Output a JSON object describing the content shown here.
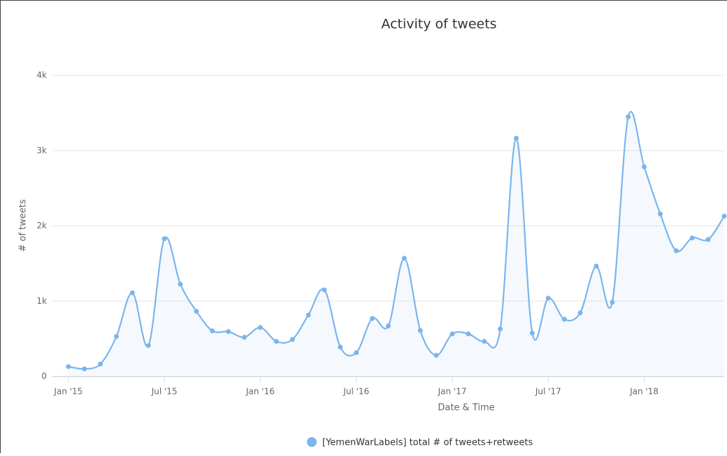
{
  "chart_data": {
    "type": "line",
    "title": "Activity of tweets",
    "x_label": "Date & Time",
    "y_label": "# of tweets",
    "x": [
      "2015-01",
      "2015-02",
      "2015-03",
      "2015-04",
      "2015-05",
      "2015-06",
      "2015-07",
      "2015-08",
      "2015-09",
      "2015-10",
      "2015-11",
      "2015-12",
      "2016-01",
      "2016-02",
      "2016-03",
      "2016-04",
      "2016-05",
      "2016-06",
      "2016-07",
      "2016-08",
      "2016-09",
      "2016-10",
      "2016-11",
      "2016-12",
      "2017-01",
      "2017-02",
      "2017-03",
      "2017-04",
      "2017-05",
      "2017-06",
      "2017-07",
      "2017-08",
      "2017-09",
      "2017-10",
      "2017-11",
      "2017-12",
      "2018-01",
      "2018-02",
      "2018-03",
      "2018-04",
      "2018-05",
      "2018-06"
    ],
    "series": [
      {
        "name": "[YemenWarLabels] total # of tweets+retweets",
        "color": "#7cb5ec",
        "values": [
          130,
          100,
          165,
          530,
          1110,
          410,
          1830,
          1225,
          865,
          605,
          595,
          520,
          650,
          465,
          490,
          815,
          1150,
          390,
          315,
          770,
          670,
          1570,
          610,
          280,
          565,
          565,
          465,
          630,
          3165,
          575,
          1040,
          760,
          845,
          1465,
          985,
          3450,
          2785,
          2160,
          1670,
          1840,
          1820,
          2130
        ]
      }
    ],
    "xlim": [
      "2014-12",
      "2018-06"
    ],
    "xticks": [
      {
        "value": "2015-01",
        "label": "Jan '15"
      },
      {
        "value": "2015-07",
        "label": "Jul '15"
      },
      {
        "value": "2016-01",
        "label": "Jan '16"
      },
      {
        "value": "2016-07",
        "label": "Jul '16"
      },
      {
        "value": "2017-01",
        "label": "Jan '17"
      },
      {
        "value": "2017-07",
        "label": "Jul '17"
      },
      {
        "value": "2018-01",
        "label": "Jan '18"
      }
    ],
    "ylim": [
      0,
      4000
    ],
    "yticks": [
      0,
      {
        "value": 1000,
        "label": "1k"
      },
      {
        "value": 2000,
        "label": "2k"
      },
      {
        "value": 3000,
        "label": "3k"
      },
      {
        "value": 4000,
        "label": "4k"
      }
    ],
    "grid": true,
    "legend": "bottom"
  }
}
